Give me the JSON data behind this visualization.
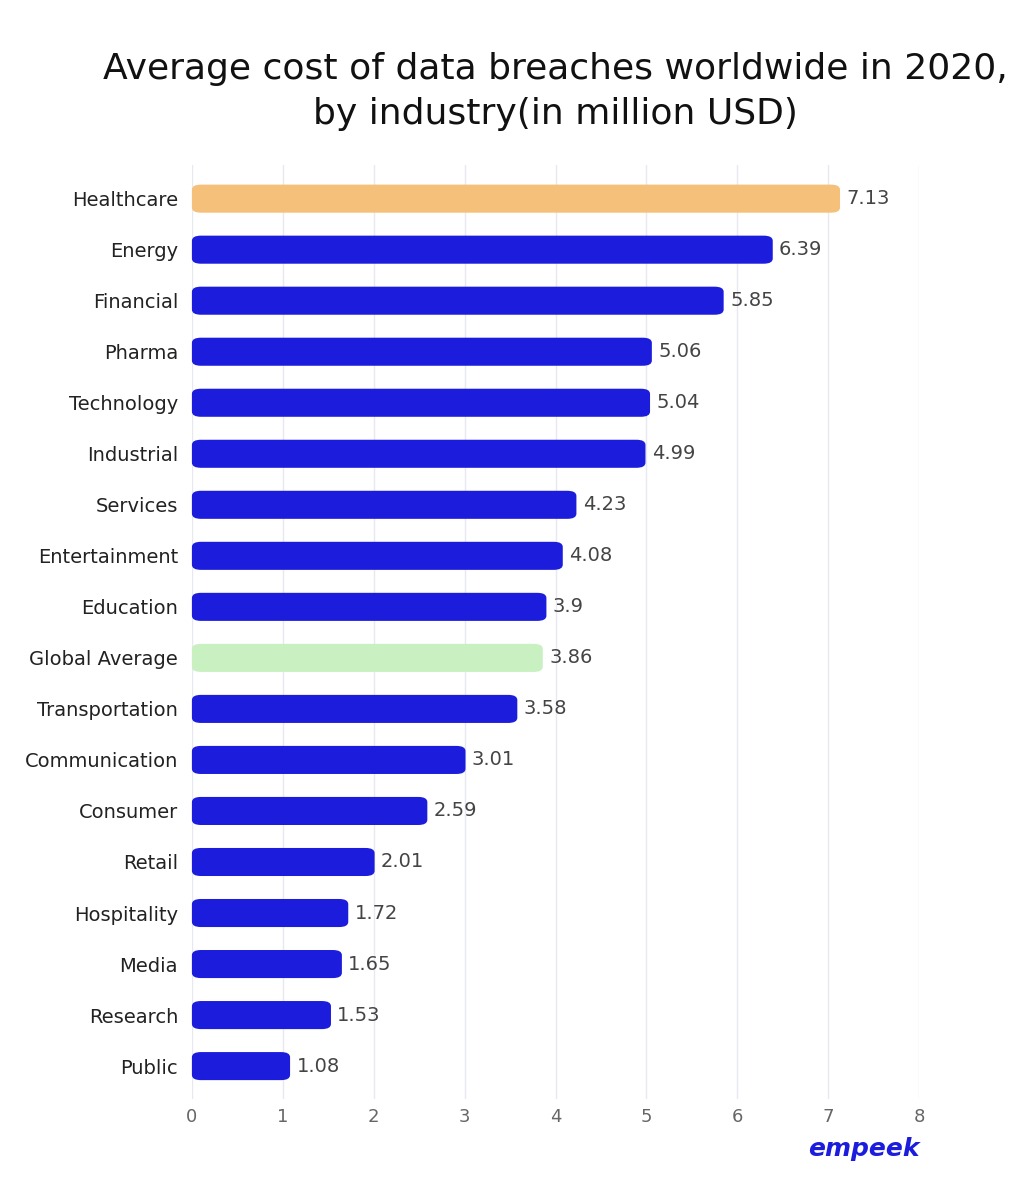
{
  "title": "Average cost of data breaches worldwide in 2020,\nby industry(in million USD)",
  "categories": [
    "Healthcare",
    "Energy",
    "Financial",
    "Pharma",
    "Technology",
    "Industrial",
    "Services",
    "Entertainment",
    "Education",
    "Global Average",
    "Transportation",
    "Communication",
    "Consumer",
    "Retail",
    "Hospitality",
    "Media",
    "Research",
    "Public"
  ],
  "values": [
    7.13,
    6.39,
    5.85,
    5.06,
    5.04,
    4.99,
    4.23,
    4.08,
    3.9,
    3.86,
    3.58,
    3.01,
    2.59,
    2.01,
    1.72,
    1.65,
    1.53,
    1.08
  ],
  "bar_colors": [
    "#F5C07A",
    "#1C1CDD",
    "#1C1CDD",
    "#1C1CDD",
    "#1C1CDD",
    "#1C1CDD",
    "#1C1CDD",
    "#1C1CDD",
    "#1C1CDD",
    "#C8F0C0",
    "#1C1CDD",
    "#1C1CDD",
    "#1C1CDD",
    "#1C1CDD",
    "#1C1CDD",
    "#1C1CDD",
    "#1C1CDD",
    "#1C1CDD"
  ],
  "xlim": [
    0,
    8
  ],
  "xticks": [
    0,
    1,
    2,
    3,
    4,
    5,
    6,
    7,
    8
  ],
  "background_color": "#FFFFFF",
  "title_fontsize": 26,
  "label_fontsize": 14,
  "value_fontsize": 14,
  "tick_fontsize": 13,
  "empeek_color": "#1C1CDD",
  "empeek_text": "empeek",
  "grid_color": "#E8E8F0",
  "bar_height": 0.55
}
